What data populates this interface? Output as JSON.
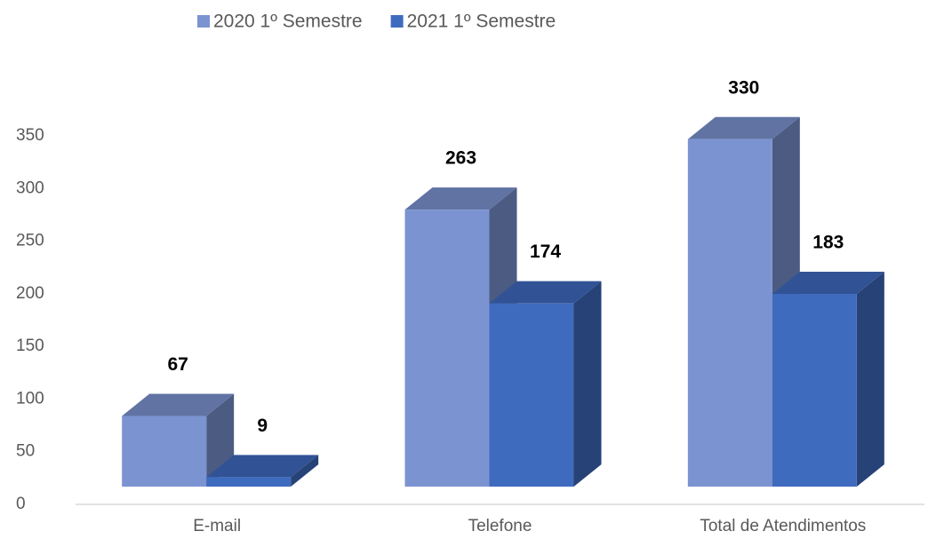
{
  "chart_data": {
    "type": "bar3d",
    "categories": [
      "E-mail",
      "Telefone",
      "Total de Atendimentos"
    ],
    "series": [
      {
        "name": "2020 1º Semestre",
        "color": "#7b93d1",
        "values": [
          67,
          263,
          330
        ]
      },
      {
        "name": "2021 1º Semestre",
        "color": "#3f6bbf",
        "values": [
          9,
          174,
          183
        ]
      }
    ],
    "ylim": [
      0,
      350
    ],
    "yticks": [
      0,
      50,
      100,
      150,
      200,
      250,
      300,
      350
    ],
    "grid": false,
    "legend": "top"
  }
}
